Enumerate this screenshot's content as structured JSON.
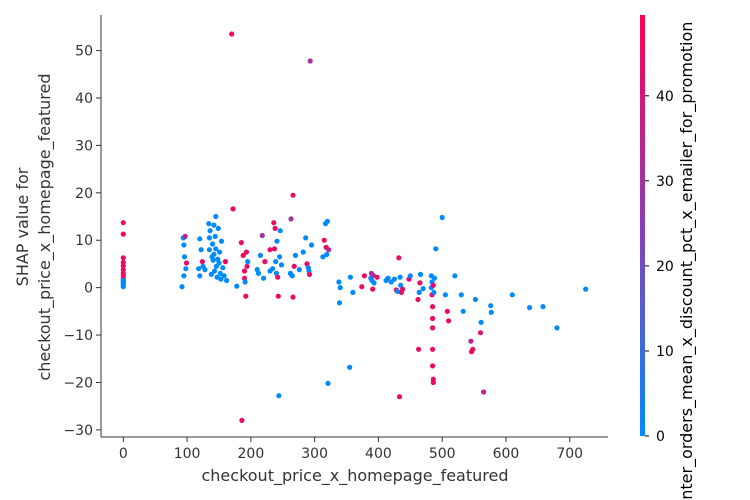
{
  "chart_data": {
    "type": "scatter",
    "xlabel": "checkout_price_x_homepage_featured",
    "ylabel_lines": [
      "SHAP value for",
      "checkout_price_x_homepage_featured"
    ],
    "xlim": [
      -35,
      760
    ],
    "ylim": [
      -31.5,
      57.5
    ],
    "xticks": [
      0,
      100,
      200,
      300,
      400,
      500,
      600,
      700
    ],
    "yticks": [
      -30,
      -20,
      -10,
      0,
      10,
      20,
      30,
      40,
      50
    ],
    "colorbar": {
      "label": "center_orders_mean_x_discount_pct_x_emailer_for_promotion",
      "ticks": [
        0,
        10,
        20,
        30,
        40
      ],
      "range": [
        0,
        49.5
      ],
      "low_color": "#008bfb",
      "high_color": "#ff0052"
    },
    "points": [
      {
        "x": 0,
        "y": 0.2,
        "c": 0
      },
      {
        "x": 0,
        "y": 0.5,
        "c": 0
      },
      {
        "x": 0,
        "y": 0.8,
        "c": 0
      },
      {
        "x": 0,
        "y": 1.1,
        "c": 0
      },
      {
        "x": 0,
        "y": 1.4,
        "c": 0
      },
      {
        "x": 0,
        "y": 1.7,
        "c": 0
      },
      {
        "x": 0,
        "y": 2.0,
        "c": 0
      },
      {
        "x": 0,
        "y": 2.5,
        "c": 45
      },
      {
        "x": 0,
        "y": 3.0,
        "c": 45
      },
      {
        "x": 0,
        "y": 3.8,
        "c": 45
      },
      {
        "x": 0,
        "y": 4.6,
        "c": 45
      },
      {
        "x": 0,
        "y": 5.3,
        "c": 45
      },
      {
        "x": 0,
        "y": 6.3,
        "c": 45
      },
      {
        "x": 0,
        "y": 11.3,
        "c": 45
      },
      {
        "x": 0,
        "y": 13.7,
        "c": 45
      },
      {
        "x": 92,
        "y": 0.2,
        "c": 0
      },
      {
        "x": 94,
        "y": 10.5,
        "c": 0
      },
      {
        "x": 95,
        "y": 2.5,
        "c": 0
      },
      {
        "x": 95,
        "y": 9.0,
        "c": 0
      },
      {
        "x": 96,
        "y": 6.5,
        "c": 0
      },
      {
        "x": 97,
        "y": 10.8,
        "c": 35
      },
      {
        "x": 98,
        "y": 4.0,
        "c": 0
      },
      {
        "x": 99,
        "y": 5.2,
        "c": 45
      },
      {
        "x": 118,
        "y": 4.0,
        "c": 0
      },
      {
        "x": 120,
        "y": 10.3,
        "c": 0
      },
      {
        "x": 120,
        "y": 2.5,
        "c": 0
      },
      {
        "x": 122,
        "y": 8.0,
        "c": 0
      },
      {
        "x": 124,
        "y": 5.5,
        "c": 45
      },
      {
        "x": 125,
        "y": 4.5,
        "c": 0
      },
      {
        "x": 128,
        "y": 3.8,
        "c": 0
      },
      {
        "x": 134,
        "y": 13.5,
        "c": 0
      },
      {
        "x": 135,
        "y": 10.5,
        "c": 0
      },
      {
        "x": 135,
        "y": 8.0,
        "c": 0
      },
      {
        "x": 136,
        "y": 12.0,
        "c": 0
      },
      {
        "x": 138,
        "y": 2.8,
        "c": 0
      },
      {
        "x": 139,
        "y": 6.5,
        "c": 0
      },
      {
        "x": 140,
        "y": 9.2,
        "c": 0
      },
      {
        "x": 141,
        "y": 5.8,
        "c": 0
      },
      {
        "x": 142,
        "y": 13.2,
        "c": 0
      },
      {
        "x": 142,
        "y": 7.0,
        "c": 0
      },
      {
        "x": 143,
        "y": 3.5,
        "c": 0
      },
      {
        "x": 144,
        "y": 10.8,
        "c": 0
      },
      {
        "x": 145,
        "y": 15.0,
        "c": 0
      },
      {
        "x": 145,
        "y": 8.2,
        "c": 0
      },
      {
        "x": 146,
        "y": 4.5,
        "c": 0
      },
      {
        "x": 147,
        "y": 2.2,
        "c": 0
      },
      {
        "x": 148,
        "y": 6.0,
        "c": 0
      },
      {
        "x": 149,
        "y": 12.5,
        "c": 0
      },
      {
        "x": 150,
        "y": 5.2,
        "c": 0
      },
      {
        "x": 151,
        "y": 7.5,
        "c": 0
      },
      {
        "x": 152,
        "y": 3.0,
        "c": 0
      },
      {
        "x": 153,
        "y": 1.8,
        "c": 0
      },
      {
        "x": 154,
        "y": 9.8,
        "c": 0
      },
      {
        "x": 156,
        "y": 4.2,
        "c": 0
      },
      {
        "x": 158,
        "y": 2.5,
        "c": 0
      },
      {
        "x": 160,
        "y": 5.5,
        "c": 45
      },
      {
        "x": 162,
        "y": 1.5,
        "c": 0
      },
      {
        "x": 170,
        "y": 53.5,
        "c": 45
      },
      {
        "x": 172,
        "y": 16.6,
        "c": 45
      },
      {
        "x": 178,
        "y": 0.3,
        "c": 0
      },
      {
        "x": 185,
        "y": 9.5,
        "c": 45
      },
      {
        "x": 186,
        "y": -28.0,
        "c": 45
      },
      {
        "x": 188,
        "y": 6.8,
        "c": 45
      },
      {
        "x": 190,
        "y": 3.5,
        "c": 45
      },
      {
        "x": 190,
        "y": 2.0,
        "c": 45
      },
      {
        "x": 191,
        "y": 1.2,
        "c": 0
      },
      {
        "x": 192,
        "y": -1.8,
        "c": 45
      },
      {
        "x": 193,
        "y": 7.5,
        "c": 45
      },
      {
        "x": 194,
        "y": 4.5,
        "c": 45
      },
      {
        "x": 195,
        "y": 5.5,
        "c": 0
      },
      {
        "x": 210,
        "y": 3.8,
        "c": 0
      },
      {
        "x": 212,
        "y": 3.0,
        "c": 0
      },
      {
        "x": 215,
        "y": 6.8,
        "c": 0
      },
      {
        "x": 218,
        "y": 11.0,
        "c": 30
      },
      {
        "x": 220,
        "y": 2.0,
        "c": 0
      },
      {
        "x": 222,
        "y": 5.5,
        "c": 45
      },
      {
        "x": 230,
        "y": 3.5,
        "c": 0
      },
      {
        "x": 230,
        "y": 8.0,
        "c": 45
      },
      {
        "x": 234,
        "y": 4.0,
        "c": 0
      },
      {
        "x": 236,
        "y": 13.7,
        "c": 45
      },
      {
        "x": 237,
        "y": 8.2,
        "c": 45
      },
      {
        "x": 238,
        "y": 12.5,
        "c": 45
      },
      {
        "x": 239,
        "y": 5.5,
        "c": 0
      },
      {
        "x": 240,
        "y": 3.0,
        "c": 0
      },
      {
        "x": 241,
        "y": 9.8,
        "c": 0
      },
      {
        "x": 242,
        "y": 2.2,
        "c": 45
      },
      {
        "x": 243,
        "y": -1.8,
        "c": 45
      },
      {
        "x": 244,
        "y": -22.8,
        "c": 0
      },
      {
        "x": 245,
        "y": 6.5,
        "c": 0
      },
      {
        "x": 246,
        "y": 12.0,
        "c": 0
      },
      {
        "x": 248,
        "y": 4.8,
        "c": 0
      },
      {
        "x": 262,
        "y": 3.0,
        "c": 0
      },
      {
        "x": 263,
        "y": 14.5,
        "c": 30
      },
      {
        "x": 265,
        "y": 2.5,
        "c": 0
      },
      {
        "x": 266,
        "y": -2.0,
        "c": 45
      },
      {
        "x": 266,
        "y": 19.5,
        "c": 45
      },
      {
        "x": 268,
        "y": 4.5,
        "c": 45
      },
      {
        "x": 270,
        "y": 6.8,
        "c": 0
      },
      {
        "x": 276,
        "y": 3.8,
        "c": 0
      },
      {
        "x": 282,
        "y": 7.5,
        "c": 0
      },
      {
        "x": 286,
        "y": 10.5,
        "c": 0
      },
      {
        "x": 288,
        "y": 5.0,
        "c": 45
      },
      {
        "x": 290,
        "y": 4.2,
        "c": 0
      },
      {
        "x": 291,
        "y": 3.5,
        "c": 0
      },
      {
        "x": 292,
        "y": 2.8,
        "c": 45
      },
      {
        "x": 293,
        "y": 47.8,
        "c": 30
      },
      {
        "x": 295,
        "y": 9.0,
        "c": 0
      },
      {
        "x": 313,
        "y": 6.5,
        "c": 0
      },
      {
        "x": 315,
        "y": 10.0,
        "c": 45
      },
      {
        "x": 317,
        "y": 13.5,
        "c": 0
      },
      {
        "x": 318,
        "y": 8.5,
        "c": 45
      },
      {
        "x": 319,
        "y": 7.0,
        "c": 0
      },
      {
        "x": 320,
        "y": 14.0,
        "c": 0
      },
      {
        "x": 321,
        "y": -20.2,
        "c": 0
      },
      {
        "x": 322,
        "y": 8.0,
        "c": 35
      },
      {
        "x": 338,
        "y": 1.2,
        "c": 0
      },
      {
        "x": 339,
        "y": -3.2,
        "c": 0
      },
      {
        "x": 340,
        "y": 0.0,
        "c": 0
      },
      {
        "x": 355,
        "y": -16.8,
        "c": 0
      },
      {
        "x": 356,
        "y": 2.2,
        "c": 0
      },
      {
        "x": 360,
        "y": -1.0,
        "c": 0
      },
      {
        "x": 374,
        "y": 0.2,
        "c": 45
      },
      {
        "x": 378,
        "y": 2.5,
        "c": 45
      },
      {
        "x": 388,
        "y": 2.0,
        "c": 0
      },
      {
        "x": 389,
        "y": 3.0,
        "c": 30
      },
      {
        "x": 390,
        "y": 1.5,
        "c": 0
      },
      {
        "x": 391,
        "y": -0.3,
        "c": 45
      },
      {
        "x": 392,
        "y": 2.6,
        "c": 30
      },
      {
        "x": 393,
        "y": 1.0,
        "c": 0
      },
      {
        "x": 398,
        "y": 2.2,
        "c": 45
      },
      {
        "x": 412,
        "y": 1.5,
        "c": 0
      },
      {
        "x": 415,
        "y": 2.0,
        "c": 0
      },
      {
        "x": 420,
        "y": 1.2,
        "c": 0
      },
      {
        "x": 425,
        "y": 1.8,
        "c": 0
      },
      {
        "x": 428,
        "y": -0.5,
        "c": 45
      },
      {
        "x": 430,
        "y": -0.8,
        "c": 0
      },
      {
        "x": 432,
        "y": 6.3,
        "c": 45
      },
      {
        "x": 433,
        "y": -23.0,
        "c": 45
      },
      {
        "x": 434,
        "y": 2.2,
        "c": 0
      },
      {
        "x": 435,
        "y": 0.5,
        "c": 0
      },
      {
        "x": 436,
        "y": -1.0,
        "c": 45
      },
      {
        "x": 438,
        "y": -0.3,
        "c": 45
      },
      {
        "x": 448,
        "y": 1.8,
        "c": 45
      },
      {
        "x": 450,
        "y": 2.5,
        "c": 0
      },
      {
        "x": 462,
        "y": -2.5,
        "c": 45
      },
      {
        "x": 463,
        "y": -13.0,
        "c": 45
      },
      {
        "x": 464,
        "y": -1.0,
        "c": 0
      },
      {
        "x": 465,
        "y": 1.0,
        "c": 45
      },
      {
        "x": 466,
        "y": 2.8,
        "c": 0
      },
      {
        "x": 470,
        "y": -0.2,
        "c": 0
      },
      {
        "x": 483,
        "y": 0.0,
        "c": 0
      },
      {
        "x": 483,
        "y": 2.5,
        "c": 0
      },
      {
        "x": 484,
        "y": 1.2,
        "c": 0
      },
      {
        "x": 484,
        "y": -1.5,
        "c": 45
      },
      {
        "x": 485,
        "y": -4.0,
        "c": 45
      },
      {
        "x": 485,
        "y": -6.5,
        "c": 45
      },
      {
        "x": 485,
        "y": -8.5,
        "c": 45
      },
      {
        "x": 485,
        "y": -13.0,
        "c": 45
      },
      {
        "x": 485,
        "y": -16.5,
        "c": 45
      },
      {
        "x": 486,
        "y": -19.3,
        "c": 45
      },
      {
        "x": 486,
        "y": -20.0,
        "c": 45
      },
      {
        "x": 486,
        "y": 0.5,
        "c": 45
      },
      {
        "x": 487,
        "y": -1.0,
        "c": 0
      },
      {
        "x": 488,
        "y": 2.0,
        "c": 0
      },
      {
        "x": 490,
        "y": 8.2,
        "c": 0
      },
      {
        "x": 500,
        "y": 14.8,
        "c": 0
      },
      {
        "x": 505,
        "y": -1.5,
        "c": 0
      },
      {
        "x": 508,
        "y": -5.0,
        "c": 45
      },
      {
        "x": 510,
        "y": -7.0,
        "c": 45
      },
      {
        "x": 520,
        "y": 2.5,
        "c": 0
      },
      {
        "x": 530,
        "y": -1.5,
        "c": 0
      },
      {
        "x": 533,
        "y": -5.0,
        "c": 0
      },
      {
        "x": 545,
        "y": -11.3,
        "c": 35
      },
      {
        "x": 546,
        "y": -13.5,
        "c": 45
      },
      {
        "x": 548,
        "y": -13.0,
        "c": 45
      },
      {
        "x": 552,
        "y": -2.5,
        "c": 0
      },
      {
        "x": 560,
        "y": -9.5,
        "c": 40
      },
      {
        "x": 561,
        "y": -7.3,
        "c": 0
      },
      {
        "x": 565,
        "y": -22.0,
        "c": 35
      },
      {
        "x": 576,
        "y": -3.8,
        "c": 0
      },
      {
        "x": 577,
        "y": -5.2,
        "c": 0
      },
      {
        "x": 610,
        "y": -1.5,
        "c": 0
      },
      {
        "x": 637,
        "y": -4.2,
        "c": 0
      },
      {
        "x": 658,
        "y": -4.0,
        "c": 0
      },
      {
        "x": 680,
        "y": -8.5,
        "c": 0
      },
      {
        "x": 725,
        "y": -0.3,
        "c": 0
      }
    ]
  }
}
